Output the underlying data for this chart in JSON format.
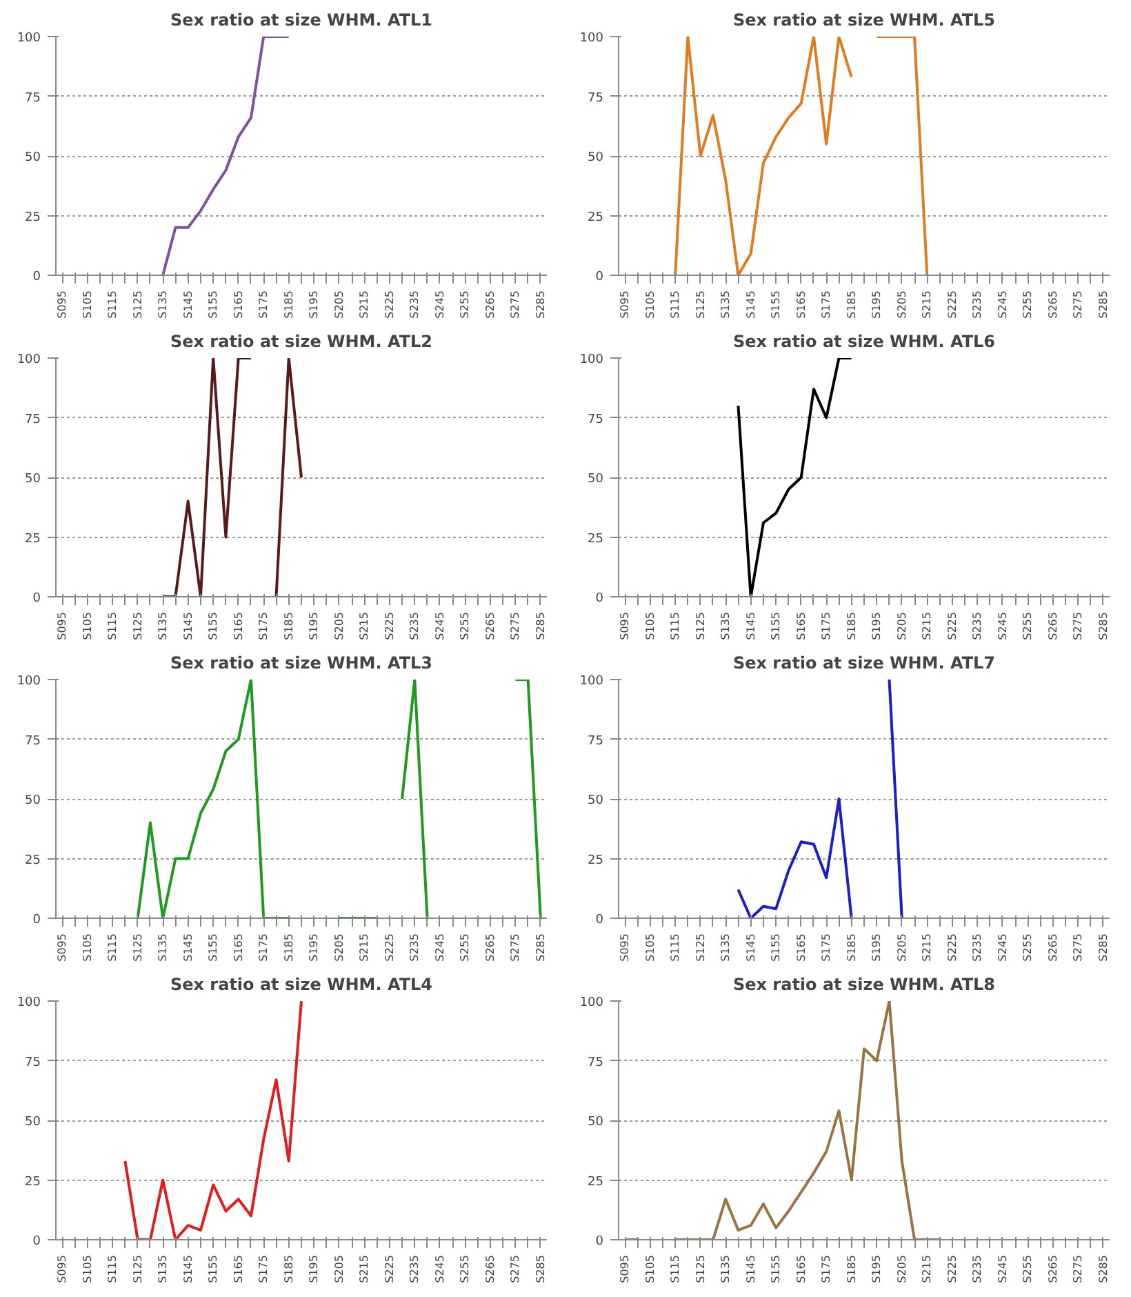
{
  "chart_data": [
    {
      "type": "line",
      "title": "Sex ratio at size WHM. ATL1",
      "color": "#7f4fa0",
      "ylim": [
        0,
        100
      ],
      "yticks": [
        0,
        25,
        50,
        75,
        100
      ],
      "grid": "y",
      "categories": [
        "S095",
        null,
        "S105",
        null,
        "S115",
        null,
        "S125",
        null,
        "S135",
        null,
        "S145",
        null,
        "S155",
        null,
        "S165",
        null,
        "S175",
        null,
        "S185",
        null,
        "S195",
        null,
        "S205",
        null,
        "S215",
        null,
        "S225",
        null,
        "S235",
        null,
        "S245",
        null,
        "S255",
        null,
        "S265",
        null,
        "S275",
        null,
        "S285"
      ],
      "values": [
        null,
        null,
        null,
        null,
        null,
        null,
        null,
        null,
        0,
        20,
        20,
        27,
        36,
        44,
        58,
        66,
        100,
        100,
        100,
        null,
        null,
        null,
        null,
        null,
        null,
        null,
        null,
        null,
        null,
        null,
        null,
        null,
        null,
        null,
        null,
        null,
        null,
        null,
        null
      ]
    },
    {
      "type": "line",
      "title": "Sex ratio at size WHM. ATL5",
      "color": "#e07b20",
      "ylim": [
        0,
        100
      ],
      "yticks": [
        0,
        25,
        50,
        75,
        100
      ],
      "grid": "y",
      "categories": [
        "S095",
        null,
        "S105",
        null,
        "S115",
        null,
        "S125",
        null,
        "S135",
        null,
        "S145",
        null,
        "S155",
        null,
        "S165",
        null,
        "S175",
        null,
        "S185",
        null,
        "S195",
        null,
        "S205",
        null,
        "S215",
        null,
        "S225",
        null,
        "S235",
        null,
        "S245",
        null,
        "S255",
        null,
        "S265",
        null,
        "S275",
        null,
        "S285"
      ],
      "values": [
        null,
        null,
        null,
        null,
        0,
        100,
        50,
        67,
        40,
        0,
        9,
        47,
        58,
        66,
        72,
        100,
        55,
        100,
        83,
        null,
        100,
        100,
        100,
        100,
        0,
        null,
        null,
        null,
        null,
        null,
        null,
        null,
        null,
        null,
        null,
        null,
        null,
        null,
        null
      ]
    },
    {
      "type": "line",
      "title": "Sex ratio at size WHM. ATL2",
      "color": "#5a1a1a",
      "ylim": [
        0,
        100
      ],
      "yticks": [
        0,
        25,
        50,
        75,
        100
      ],
      "grid": "y",
      "categories": [
        "S095",
        null,
        "S105",
        null,
        "S115",
        null,
        "S125",
        null,
        "S135",
        null,
        "S145",
        null,
        "S155",
        null,
        "S165",
        null,
        "S175",
        null,
        "S185",
        null,
        "S195",
        null,
        "S205",
        null,
        "S215",
        null,
        "S225",
        null,
        "S235",
        null,
        "S245",
        null,
        "S255",
        null,
        "S265",
        null,
        "S275",
        null,
        "S285"
      ],
      "values": [
        null,
        null,
        null,
        null,
        null,
        null,
        null,
        null,
        0,
        0,
        40,
        0,
        100,
        25,
        100,
        100,
        null,
        0,
        100,
        50,
        null,
        null,
        null,
        null,
        null,
        null,
        null,
        null,
        null,
        null,
        null,
        null,
        null,
        null,
        null,
        null,
        null,
        null,
        null
      ]
    },
    {
      "type": "line",
      "title": "Sex ratio at size WHM. ATL6",
      "color": "#000000",
      "ylim": [
        0,
        100
      ],
      "yticks": [
        0,
        25,
        50,
        75,
        100
      ],
      "grid": "y",
      "categories": [
        "S095",
        null,
        "S105",
        null,
        "S115",
        null,
        "S125",
        null,
        "S135",
        null,
        "S145",
        null,
        "S155",
        null,
        "S165",
        null,
        "S175",
        null,
        "S185",
        null,
        "S195",
        null,
        "S205",
        null,
        "S215",
        null,
        "S225",
        null,
        "S235",
        null,
        "S245",
        null,
        "S255",
        null,
        "S265",
        null,
        "S275",
        null,
        "S285"
      ],
      "values": [
        null,
        null,
        null,
        null,
        null,
        null,
        null,
        null,
        null,
        80,
        0,
        31,
        35,
        45,
        50,
        87,
        75,
        100,
        100,
        null,
        null,
        null,
        null,
        null,
        null,
        null,
        null,
        null,
        null,
        null,
        null,
        null,
        null,
        null,
        null,
        null,
        null,
        null,
        null
      ]
    },
    {
      "type": "line",
      "title": "Sex ratio at size WHM. ATL3",
      "color": "#1e9a1e",
      "ylim": [
        0,
        100
      ],
      "yticks": [
        0,
        25,
        50,
        75,
        100
      ],
      "grid": "y",
      "categories": [
        "S095",
        null,
        "S105",
        null,
        "S115",
        null,
        "S125",
        null,
        "S135",
        null,
        "S145",
        null,
        "S155",
        null,
        "S165",
        null,
        "S175",
        null,
        "S185",
        null,
        "S195",
        null,
        "S205",
        null,
        "S215",
        null,
        "S225",
        null,
        "S235",
        null,
        "S245",
        null,
        "S255",
        null,
        "S265",
        null,
        "S275",
        null,
        "S285"
      ],
      "values": [
        null,
        null,
        null,
        null,
        null,
        null,
        0,
        40,
        0,
        25,
        25,
        44,
        54,
        70,
        75,
        100,
        0,
        0,
        0,
        null,
        null,
        null,
        0,
        0,
        0,
        0,
        null,
        50,
        100,
        0,
        null,
        null,
        null,
        null,
        null,
        null,
        100,
        100,
        0
      ]
    },
    {
      "type": "line",
      "title": "Sex ratio at size WHM. ATL7",
      "color": "#1c1cc8",
      "ylim": [
        0,
        100
      ],
      "yticks": [
        0,
        25,
        50,
        75,
        100
      ],
      "grid": "y",
      "categories": [
        "S095",
        null,
        "S105",
        null,
        "S115",
        null,
        "S125",
        null,
        "S135",
        null,
        "S145",
        null,
        "S155",
        null,
        "S165",
        null,
        "S175",
        null,
        "S185",
        null,
        "S195",
        null,
        "S205",
        null,
        "S215",
        null,
        "S225",
        null,
        "S235",
        null,
        "S245",
        null,
        "S255",
        null,
        "S265",
        null,
        "S275",
        null,
        "S285"
      ],
      "values": [
        null,
        null,
        null,
        null,
        null,
        null,
        null,
        null,
        null,
        12,
        0,
        5,
        4,
        20,
        32,
        31,
        17,
        50,
        0,
        null,
        null,
        100,
        0,
        null,
        null,
        null,
        null,
        null,
        null,
        null,
        null,
        null,
        null,
        null,
        null,
        null,
        null,
        null,
        null
      ]
    },
    {
      "type": "line",
      "title": "Sex ratio at size WHM. ATL4",
      "color": "#e01c1c",
      "ylim": [
        0,
        100
      ],
      "yticks": [
        0,
        25,
        50,
        75,
        100
      ],
      "grid": "y",
      "categories": [
        "S095",
        null,
        "S105",
        null,
        "S115",
        null,
        "S125",
        null,
        "S135",
        null,
        "S145",
        null,
        "S155",
        null,
        "S165",
        null,
        "S175",
        null,
        "S185",
        null,
        "S195",
        null,
        "S205",
        null,
        "S215",
        null,
        "S225",
        null,
        "S235",
        null,
        "S245",
        null,
        "S255",
        null,
        "S265",
        null,
        "S275",
        null,
        "S285"
      ],
      "values": [
        null,
        null,
        null,
        null,
        null,
        33,
        0,
        0,
        25,
        0,
        6,
        4,
        23,
        12,
        17,
        10,
        42,
        67,
        33,
        100,
        null,
        null,
        null,
        null,
        null,
        null,
        null,
        null,
        null,
        null,
        null,
        null,
        null,
        null,
        null,
        null,
        null,
        null,
        null
      ]
    },
    {
      "type": "line",
      "title": "Sex ratio at size WHM. ATL8",
      "color": "#9a7440",
      "ylim": [
        0,
        100
      ],
      "yticks": [
        0,
        25,
        50,
        75,
        100
      ],
      "grid": "y",
      "categories": [
        "S095",
        null,
        "S105",
        null,
        "S115",
        null,
        "S125",
        null,
        "S135",
        null,
        "S145",
        null,
        "S155",
        null,
        "S165",
        null,
        "S175",
        null,
        "S185",
        null,
        "S195",
        null,
        "S205",
        null,
        "S215",
        null,
        "S225",
        null,
        "S235",
        null,
        "S245",
        null,
        "S255",
        null,
        "S265",
        null,
        "S275",
        null,
        "S285"
      ],
      "values": [
        0,
        0,
        null,
        null,
        0,
        0,
        0,
        0,
        17,
        4,
        6,
        15,
        5,
        12,
        20,
        28,
        37,
        54,
        25,
        80,
        75,
        100,
        33,
        0,
        0,
        0,
        null,
        null,
        null,
        null,
        null,
        null,
        null,
        null,
        null,
        null,
        null,
        null,
        null
      ]
    }
  ]
}
